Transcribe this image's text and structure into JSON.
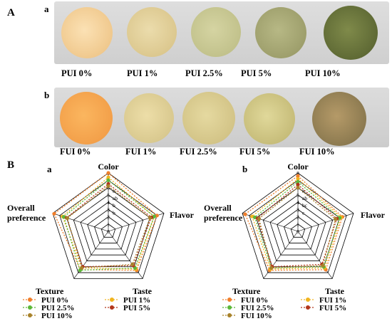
{
  "panel_A": {
    "letter": "A",
    "row_a": {
      "letter": "a",
      "samples": [
        "PUI 0%",
        "PUI 1%",
        "PUI 2.5%",
        "PUI 5%",
        "PUI 10%"
      ]
    },
    "row_b": {
      "letter": "b",
      "samples": [
        "FUI 0%",
        "FUI 1%",
        "FUI 2.5%",
        "FUI 5%",
        "FUI 10%"
      ]
    }
  },
  "panel_B": {
    "letter": "B"
  },
  "chart_data": [
    {
      "type": "radar",
      "panel": "a",
      "axes": [
        "Color",
        "Flavor",
        "Taste",
        "Texture",
        "Overall preference"
      ],
      "scale_ticks": [
        "0",
        "1",
        "2",
        "3",
        "4",
        "5",
        "6",
        "7",
        "8"
      ],
      "range": [
        0,
        8
      ],
      "significance_letters_on_color_axis": [
        "a",
        "ab",
        "b",
        "b"
      ],
      "series": [
        {
          "name": "PUI 0%",
          "color": "#f07e2a",
          "values": [
            8.0,
            7.0,
            6.6,
            6.5,
            7.8
          ]
        },
        {
          "name": "PUI 1%",
          "color": "#f0b41e",
          "values": [
            7.4,
            6.6,
            6.4,
            6.2,
            6.6
          ]
        },
        {
          "name": "PUI 2.5%",
          "color": "#5cb83a",
          "values": [
            7.0,
            6.6,
            6.2,
            6.6,
            6.4
          ]
        },
        {
          "name": "PUI 5%",
          "color": "#b2361b",
          "values": [
            6.5,
            6.2,
            5.8,
            6.0,
            6.0
          ]
        },
        {
          "name": "PUI 10%",
          "color": "#a8822a",
          "values": [
            6.2,
            6.0,
            5.6,
            6.2,
            5.9
          ]
        }
      ]
    },
    {
      "type": "radar",
      "panel": "b",
      "axes": [
        "Color",
        "Flavor",
        "Taste",
        "Texture",
        "Overall preference"
      ],
      "scale_ticks": [
        "0",
        "1",
        "2",
        "3",
        "4",
        "5",
        "6",
        "7",
        "8"
      ],
      "range": [
        0,
        8
      ],
      "significance_letters_on_color_axis": [
        "a",
        "ab",
        "bc",
        "c"
      ],
      "series": [
        {
          "name": "FUI 0%",
          "color": "#f07e2a",
          "values": [
            7.6,
            6.4,
            6.5,
            6.6,
            7.6
          ]
        },
        {
          "name": "FUI 1%",
          "color": "#f0b41e",
          "values": [
            7.2,
            6.2,
            6.2,
            6.4,
            6.6
          ]
        },
        {
          "name": "FUI 2.5%",
          "color": "#5cb83a",
          "values": [
            6.8,
            6.0,
            6.0,
            6.2,
            6.2
          ]
        },
        {
          "name": "FUI 5%",
          "color": "#b2361b",
          "values": [
            6.4,
            5.6,
            5.6,
            6.0,
            5.8
          ]
        },
        {
          "name": "FUI 10%",
          "color": "#a8822a",
          "values": [
            6.0,
            5.4,
            5.8,
            6.2,
            5.6
          ]
        }
      ]
    }
  ]
}
